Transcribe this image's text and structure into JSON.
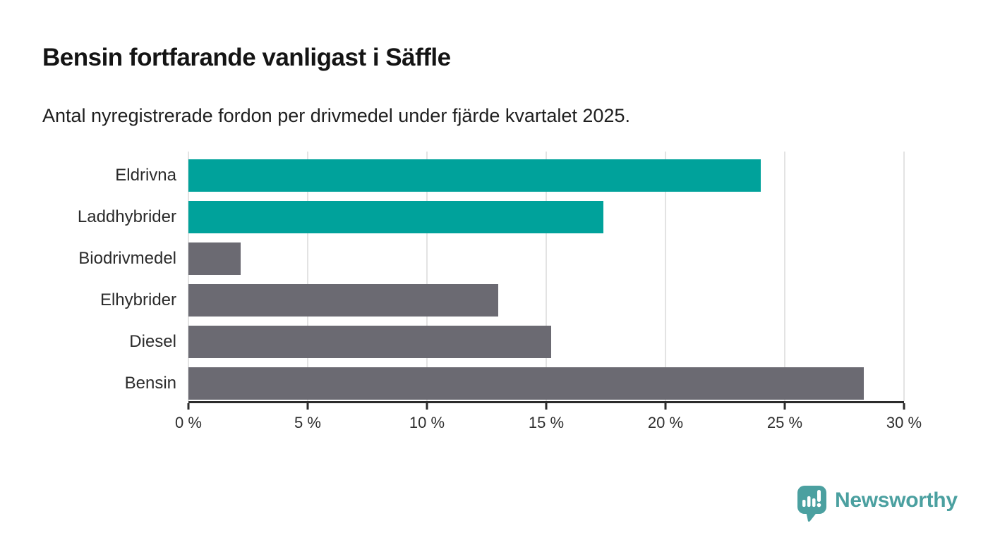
{
  "chart_data": {
    "type": "bar",
    "orientation": "horizontal",
    "title": "Bensin fortfarande vanligast i Säffle",
    "subtitle": "Antal nyregistrerade fordon per drivmedel under fjärde kvartalet 2025.",
    "categories": [
      "Eldrivna",
      "Laddhybrider",
      "Biodrivmedel",
      "Elhybrider",
      "Diesel",
      "Bensin"
    ],
    "values": [
      24.0,
      17.4,
      2.2,
      13.0,
      15.2,
      28.3
    ],
    "highlighted": [
      true,
      true,
      false,
      false,
      false,
      false
    ],
    "unit": "%",
    "xlabel": "",
    "ylabel": "",
    "xlim": [
      0,
      30
    ],
    "x_ticks": [
      0,
      5,
      10,
      15,
      20,
      25,
      30
    ],
    "x_tick_labels": [
      "0 %",
      "5 %",
      "10 %",
      "15 %",
      "20 %",
      "25 %",
      "30 %"
    ],
    "grid": true,
    "legend": "none",
    "colors": {
      "highlight": "#00A29B",
      "default": "#6B6A72",
      "gridline": "#E3E3E3",
      "axis": "#2B2B2B"
    }
  },
  "branding": {
    "logo_text": "Newsworthy",
    "logo_color": "#4BA0A0"
  }
}
